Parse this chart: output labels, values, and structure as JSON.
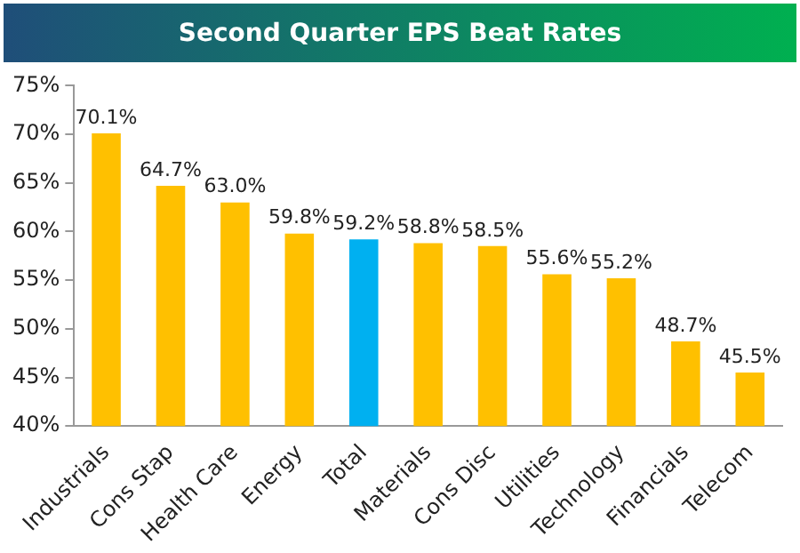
{
  "chart_data": {
    "type": "bar",
    "title": "Second Quarter EPS Beat Rates",
    "categories": [
      "Industrials",
      "Cons Stap",
      "Health Care",
      "Energy",
      "Total",
      "Materials",
      "Cons Disc",
      "Utilities",
      "Technology",
      "Financials",
      "Telecom"
    ],
    "values": [
      70.1,
      64.7,
      63.0,
      59.8,
      59.2,
      58.8,
      58.5,
      55.6,
      55.2,
      48.7,
      45.5
    ],
    "colors": [
      "#ffc000",
      "#ffc000",
      "#ffc000",
      "#ffc000",
      "#00b0f0",
      "#ffc000",
      "#ffc000",
      "#ffc000",
      "#ffc000",
      "#ffc000",
      "#ffc000"
    ],
    "value_labels": [
      "70.1%",
      "64.7%",
      "63.0%",
      "59.8%",
      "59.2%",
      "58.8%",
      "58.5%",
      "55.6%",
      "55.2%",
      "48.7%",
      "45.5%"
    ],
    "ylim": [
      40,
      75
    ],
    "yticks": [
      {
        "value": 40,
        "label": "40%"
      },
      {
        "value": 45,
        "label": "45%"
      },
      {
        "value": 50,
        "label": "50%"
      },
      {
        "value": 55,
        "label": "55%"
      },
      {
        "value": 60,
        "label": "60%"
      },
      {
        "value": 65,
        "label": "65%"
      },
      {
        "value": 70,
        "label": "70%"
      },
      {
        "value": 75,
        "label": "75%"
      }
    ],
    "grid": false,
    "legend": false
  }
}
